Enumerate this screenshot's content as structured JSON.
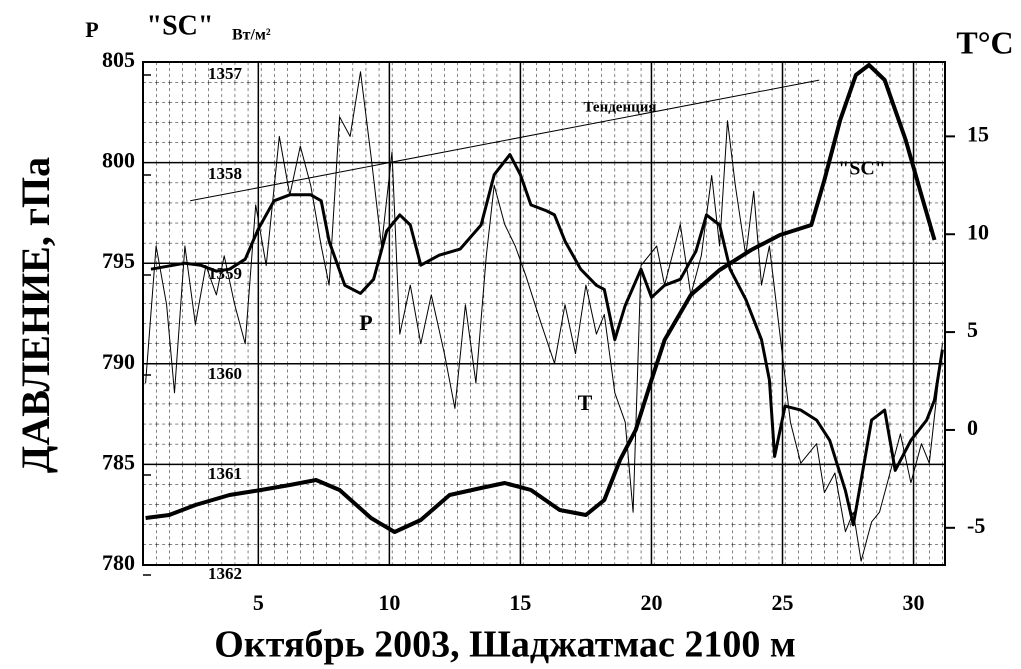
{
  "chart_data": {
    "type": "line",
    "title_left_axis": "P",
    "title_sc": "\"SC\"",
    "title_sc_unit": "Вт/м²",
    "title_right_axis": "T°C",
    "ylabel": "ДАВЛЕНИЕ, гПа",
    "xlabel": "Октябрь 2003,  Шаджатмас 2100 м",
    "annotations": [
      "Тенденция",
      "\"SC\"",
      "P",
      "T"
    ],
    "xlim": [
      0.6,
      31.2
    ],
    "xticks": [
      5,
      10,
      15,
      20,
      25,
      30
    ],
    "ylim": [
      780,
      805
    ],
    "yticks": [
      780,
      785,
      790,
      795,
      800,
      805
    ],
    "y2lim": [
      -6.9,
      18.8
    ],
    "y2ticks": [
      -5,
      0,
      5,
      10,
      15
    ],
    "y3lim": [
      1361.9,
      1356.87
    ],
    "y3ticks": [
      1357,
      1358,
      1359,
      1360,
      1361,
      1362
    ],
    "grid": true,
    "trend": {
      "name": "Тенденция",
      "x": [
        2.4,
        26.4
      ],
      "values": [
        798.1,
        804.1
      ],
      "color": "#000000"
    },
    "series": [
      {
        "name": "P",
        "color": "#000000",
        "axis": "y",
        "width": 3,
        "x": [
          0.9,
          2.2,
          2.8,
          3.4,
          3.9,
          4.5,
          5.0,
          5.6,
          6.2,
          7.0,
          7.4,
          7.7,
          8.3,
          8.9,
          9.4,
          9.9,
          10.4,
          10.8,
          11.2,
          11.9,
          12.7,
          13.5,
          14.0,
          14.6,
          15.0,
          15.4,
          16.0,
          16.3,
          16.7,
          17.3,
          17.9,
          18.2,
          18.6,
          19.0,
          19.6,
          20.0,
          20.5,
          21.1,
          21.7,
          22.1,
          22.6,
          23.0,
          23.6,
          24.2,
          24.5,
          24.7,
          25.1,
          25.7,
          26.3,
          26.8,
          27.4,
          27.7,
          28.0,
          28.4,
          28.9,
          29.3,
          29.9,
          30.5,
          30.8,
          31.1
        ],
        "values": [
          794.7,
          795.0,
          794.9,
          794.6,
          794.7,
          795.2,
          796.7,
          798.1,
          798.4,
          798.4,
          798.1,
          796.1,
          793.9,
          793.5,
          794.2,
          796.6,
          797.4,
          796.9,
          794.9,
          795.4,
          795.7,
          796.9,
          799.4,
          800.4,
          799.4,
          797.9,
          797.6,
          797.4,
          796.1,
          794.7,
          793.9,
          793.7,
          791.2,
          792.9,
          794.7,
          793.3,
          793.9,
          794.2,
          795.6,
          797.4,
          796.9,
          794.7,
          793.2,
          791.2,
          789.2,
          785.4,
          787.9,
          787.7,
          787.2,
          786.2,
          783.7,
          782.0,
          784.2,
          787.2,
          787.7,
          784.7,
          786.2,
          787.2,
          788.2,
          790.7
        ]
      },
      {
        "name": "T",
        "color": "#000000",
        "axis": "y2",
        "width": 1,
        "x": [
          0.7,
          1.1,
          1.5,
          1.8,
          2.2,
          2.6,
          3.0,
          3.4,
          3.7,
          4.1,
          4.5,
          4.9,
          5.3,
          5.8,
          6.2,
          6.6,
          7.0,
          7.4,
          7.7,
          8.1,
          8.5,
          8.9,
          9.3,
          9.7,
          10.1,
          10.4,
          10.8,
          11.2,
          11.6,
          12.1,
          12.5,
          12.9,
          13.3,
          13.7,
          14.0,
          14.4,
          14.8,
          15.2,
          15.8,
          16.3,
          16.7,
          17.1,
          17.5,
          17.9,
          18.2,
          18.6,
          19.0,
          19.3,
          19.6,
          20.2,
          20.5,
          21.1,
          21.5,
          21.9,
          22.3,
          22.6,
          22.9,
          23.2,
          23.6,
          23.9,
          24.2,
          24.5,
          24.9,
          25.3,
          25.7,
          26.3,
          26.6,
          27.0,
          27.4,
          27.7,
          28.0,
          28.4,
          28.7,
          29.1,
          29.5,
          29.9,
          30.3,
          30.6,
          31.1
        ],
        "values": [
          2.4,
          9.4,
          6.4,
          1.9,
          9.4,
          5.4,
          8.4,
          6.9,
          8.9,
          6.4,
          4.4,
          11.5,
          8.4,
          15.0,
          12.0,
          14.5,
          12.5,
          9.4,
          7.4,
          16.0,
          15.0,
          18.3,
          14.0,
          9.4,
          14.2,
          4.9,
          7.4,
          4.4,
          6.9,
          3.9,
          1.1,
          6.4,
          2.4,
          8.9,
          12.5,
          10.5,
          9.4,
          7.9,
          5.4,
          3.4,
          6.4,
          3.9,
          7.4,
          4.9,
          5.9,
          1.9,
          0.4,
          -4.2,
          8.4,
          9.4,
          7.4,
          10.5,
          6.9,
          8.9,
          13.0,
          9.4,
          15.8,
          12.5,
          8.9,
          12.2,
          7.4,
          9.4,
          4.9,
          0.4,
          -1.7,
          -0.7,
          -3.2,
          -2.2,
          -5.2,
          -4.2,
          -6.7,
          -4.7,
          -4.2,
          -2.2,
          -0.2,
          -2.7,
          -0.7,
          -1.7,
          4.4
        ]
      },
      {
        "name": "\"SC\"",
        "color": "#000000",
        "axis": "y3",
        "width": 4,
        "x": [
          0.7,
          1.6,
          2.6,
          3.9,
          5.1,
          6.2,
          7.2,
          8.1,
          9.3,
          10.2,
          11.2,
          12.3,
          13.5,
          14.4,
          15.4,
          16.5,
          17.5,
          18.2,
          18.8,
          19.4,
          20.0,
          20.5,
          21.5,
          22.6,
          23.8,
          24.9,
          26.1,
          26.6,
          27.2,
          27.8,
          28.3,
          28.9,
          29.7,
          30.3,
          30.8
        ],
        "values": [
          1361.43,
          1361.4,
          1361.3,
          1361.2,
          1361.15,
          1361.1,
          1361.05,
          1361.15,
          1361.43,
          1361.57,
          1361.45,
          1361.2,
          1361.13,
          1361.08,
          1361.15,
          1361.35,
          1361.4,
          1361.25,
          1360.85,
          1360.55,
          1360.05,
          1359.65,
          1359.2,
          1358.95,
          1358.75,
          1358.6,
          1358.5,
          1358.05,
          1357.45,
          1357.0,
          1356.9,
          1357.05,
          1357.65,
          1358.2,
          1358.65
        ]
      }
    ]
  }
}
